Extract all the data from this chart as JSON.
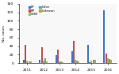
{
  "years": [
    "2011",
    "2012",
    "2013",
    "2014",
    "2015",
    "2016"
  ],
  "series": {
    "BP": [
      7,
      8,
      18,
      28,
      42,
      125
    ],
    "MP": [
      42,
      38,
      32,
      52,
      2,
      22
    ],
    "SEBS": [
      5,
      5,
      4,
      7,
      5,
      12
    ],
    "Other": [
      4,
      12,
      3,
      5,
      8,
      10
    ],
    "Unknown": [
      3,
      3,
      2,
      4,
      7,
      7
    ]
  },
  "colors": {
    "BP": "#4472c4",
    "MP": "#c0504d",
    "SEBS": "#9bbb59",
    "Other": "#4bacc6",
    "Unknown": "#c4a832"
  },
  "ylabel": "No. cases",
  "ylim": [
    0,
    140
  ],
  "yticks": [
    0,
    20,
    40,
    60,
    80,
    100,
    120,
    140
  ],
  "legend": [
    [
      "BP",
      "SEBS"
    ],
    [
      "MP",
      "Other"
    ],
    [
      "Unknown",
      ""
    ]
  ]
}
